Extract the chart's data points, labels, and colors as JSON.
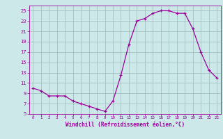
{
  "hours": [
    0,
    1,
    2,
    3,
    4,
    5,
    6,
    7,
    8,
    9,
    10,
    11,
    12,
    13,
    14,
    15,
    16,
    17,
    18,
    19,
    20,
    21,
    22,
    23
  ],
  "values": [
    10.0,
    9.5,
    8.5,
    8.5,
    8.5,
    7.5,
    7.0,
    6.5,
    6.0,
    5.5,
    7.5,
    12.5,
    18.5,
    23.0,
    23.5,
    24.5,
    25.0,
    25.0,
    24.5,
    24.5,
    21.5,
    17.0,
    13.5,
    12.0
  ],
  "xlim": [
    -0.5,
    23.5
  ],
  "ylim": [
    5,
    26
  ],
  "yticks": [
    5,
    7,
    9,
    11,
    13,
    15,
    17,
    19,
    21,
    23,
    25
  ],
  "xticks": [
    0,
    1,
    2,
    3,
    4,
    5,
    6,
    7,
    8,
    9,
    10,
    11,
    12,
    13,
    14,
    15,
    16,
    17,
    18,
    19,
    20,
    21,
    22,
    23
  ],
  "xlabel": "Windchill (Refroidissement éolien,°C)",
  "line_color": "#9b009b",
  "marker": "+",
  "bg_color": "#cce8e8",
  "grid_color": "#99bbbb",
  "label_color": "#9b009b",
  "tick_color": "#9b009b"
}
